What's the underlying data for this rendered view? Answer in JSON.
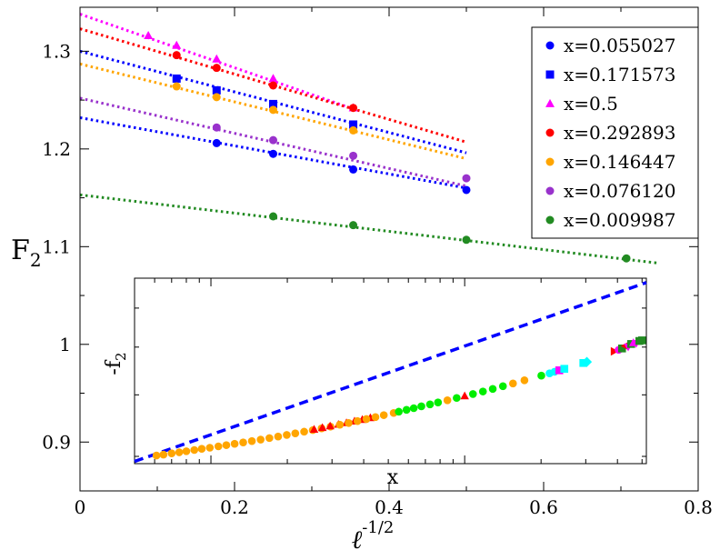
{
  "chart_data": [
    {
      "type": "scatter",
      "role": "main",
      "title": "",
      "xlabel_main": "ℓ",
      "xlabel_sup": "-1/2",
      "ylabel_main": "F",
      "ylabel_sub": "2",
      "xlim": [
        0,
        0.8
      ],
      "ylim": [
        0.85,
        1.345
      ],
      "x_ticks": [
        0,
        0.2,
        0.4,
        0.6,
        0.8
      ],
      "x_tick_labels": [
        "0",
        "0.2",
        "0.4",
        "0.6",
        "0.8"
      ],
      "y_ticks": [
        0.9,
        1.0,
        1.1,
        1.2,
        1.3
      ],
      "y_tick_labels": [
        "0.9",
        "1",
        "1.1",
        "1.2",
        "1.3"
      ],
      "legend_position": "top-right",
      "series": [
        {
          "name": "x=0.055027",
          "color": "#0000ff",
          "marker": "circle",
          "x": [
            0.1768,
            0.25,
            0.3536,
            0.5
          ],
          "y": [
            1.206,
            1.195,
            1.179,
            1.158
          ],
          "fit": {
            "x": [
              0,
              0.5
            ],
            "y": [
              1.232,
              1.16
            ]
          }
        },
        {
          "name": "x=0.171573",
          "color": "#0000ff",
          "marker": "square",
          "x": [
            0.125,
            0.1768,
            0.25,
            0.3536
          ],
          "y": [
            1.272,
            1.26,
            1.246,
            1.225
          ],
          "fit": {
            "x": [
              0,
              0.5
            ],
            "y": [
              1.3,
              1.196
            ]
          }
        },
        {
          "name": "x=0.5",
          "color": "#ff00ff",
          "marker": "triangle",
          "x": [
            0.0884,
            0.125,
            0.1768,
            0.25,
            0.3536
          ],
          "y": [
            1.316,
            1.306,
            1.292,
            1.272,
            1.242
          ],
          "fit": {
            "x": [
              0,
              0.3536
            ],
            "y": [
              1.338,
              1.241
            ]
          }
        },
        {
          "name": "x=0.292893",
          "color": "#ff0000",
          "marker": "circle",
          "x": [
            0.125,
            0.1768,
            0.25,
            0.3536
          ],
          "y": [
            1.296,
            1.283,
            1.265,
            1.242
          ],
          "fit": {
            "x": [
              0,
              0.5
            ],
            "y": [
              1.323,
              1.207
            ]
          }
        },
        {
          "name": "x=0.146447",
          "color": "#ffa500",
          "marker": "circle",
          "x": [
            0.125,
            0.1768,
            0.25,
            0.3536
          ],
          "y": [
            1.264,
            1.253,
            1.24,
            1.219
          ],
          "fit": {
            "x": [
              0,
              0.5
            ],
            "y": [
              1.287,
              1.19
            ]
          }
        },
        {
          "name": "x=0.076120",
          "color": "#9932cc",
          "marker": "circle",
          "x": [
            0.1768,
            0.25,
            0.3536,
            0.5
          ],
          "y": [
            1.222,
            1.209,
            1.193,
            1.17
          ],
          "fit": {
            "x": [
              0,
              0.5
            ],
            "y": [
              1.252,
              1.162
            ]
          }
        },
        {
          "name": "x=0.009987",
          "color": "#228b22",
          "marker": "circle",
          "x": [
            0.25,
            0.3536,
            0.5,
            0.7071
          ],
          "y": [
            1.131,
            1.122,
            1.107,
            1.088
          ],
          "fit": {
            "x": [
              0,
              0.75
            ],
            "y": [
              1.153,
              1.083
            ]
          }
        }
      ]
    },
    {
      "type": "scatter",
      "role": "inset",
      "xlabel": "x",
      "ylabel": "-f",
      "ylabel_sub": "2",
      "xscale": "log",
      "yscale": "log",
      "xlim": [
        0.005,
        0.52
      ],
      "ylim": [
        0.29,
        0.69
      ],
      "fit": {
        "color": "#0000ff",
        "x": [
          0.005,
          0.52
        ],
        "y": [
          0.293,
          0.676
        ]
      },
      "points": [
        {
          "x": 0.0061,
          "y": 0.3012,
          "color": "#ffa500",
          "marker": "circle"
        },
        {
          "x": 0.0065,
          "y": 0.3025,
          "color": "#ffa500",
          "marker": "circle"
        },
        {
          "x": 0.007,
          "y": 0.3043,
          "color": "#ffa500",
          "marker": "circle"
        },
        {
          "x": 0.0075,
          "y": 0.3058,
          "color": "#ffa500",
          "marker": "circle"
        },
        {
          "x": 0.008,
          "y": 0.3073,
          "color": "#ffa500",
          "marker": "circle"
        },
        {
          "x": 0.0086,
          "y": 0.3091,
          "color": "#ffa500",
          "marker": "circle"
        },
        {
          "x": 0.0092,
          "y": 0.3108,
          "color": "#ffa500",
          "marker": "circle"
        },
        {
          "x": 0.0099,
          "y": 0.3124,
          "color": "#ffa500",
          "marker": "circle"
        },
        {
          "x": 0.0107,
          "y": 0.3144,
          "color": "#ffa500",
          "marker": "circle"
        },
        {
          "x": 0.0115,
          "y": 0.3162,
          "color": "#ffa500",
          "marker": "circle"
        },
        {
          "x": 0.0124,
          "y": 0.3182,
          "color": "#ffa500",
          "marker": "circle"
        },
        {
          "x": 0.0134,
          "y": 0.3202,
          "color": "#ffa500",
          "marker": "circle"
        },
        {
          "x": 0.0145,
          "y": 0.3223,
          "color": "#ffa500",
          "marker": "circle"
        },
        {
          "x": 0.0157,
          "y": 0.3245,
          "color": "#ffa500",
          "marker": "circle"
        },
        {
          "x": 0.017,
          "y": 0.3268,
          "color": "#ffa500",
          "marker": "circle"
        },
        {
          "x": 0.0184,
          "y": 0.3292,
          "color": "#ffa500",
          "marker": "circle"
        },
        {
          "x": 0.0199,
          "y": 0.3316,
          "color": "#ffa500",
          "marker": "circle"
        },
        {
          "x": 0.0215,
          "y": 0.3341,
          "color": "#ffa500",
          "marker": "circle"
        },
        {
          "x": 0.0233,
          "y": 0.3367,
          "color": "#ffa500",
          "marker": "circle"
        },
        {
          "x": 0.0252,
          "y": 0.3392,
          "color": "#ffa500",
          "marker": "circle"
        },
        {
          "x": 0.0273,
          "y": 0.342,
          "color": "#ffa500",
          "marker": "circle"
        },
        {
          "x": 0.0296,
          "y": 0.3448,
          "color": "#ffa500",
          "marker": "circle"
        },
        {
          "x": 0.0255,
          "y": 0.3404,
          "color": "#ff0000",
          "marker": "triangle"
        },
        {
          "x": 0.0275,
          "y": 0.3431,
          "color": "#ff0000",
          "marker": "triangle"
        },
        {
          "x": 0.0295,
          "y": 0.3457,
          "color": "#ff0000",
          "marker": "triangle"
        },
        {
          "x": 0.0318,
          "y": 0.3483,
          "color": "#ff0000",
          "marker": "triangle"
        },
        {
          "x": 0.0342,
          "y": 0.3509,
          "color": "#ff0000",
          "marker": "triangle"
        },
        {
          "x": 0.0368,
          "y": 0.3536,
          "color": "#ff0000",
          "marker": "triangle"
        },
        {
          "x": 0.0395,
          "y": 0.3563,
          "color": "#ff0000",
          "marker": "triangle"
        },
        {
          "x": 0.0425,
          "y": 0.3593,
          "color": "#ff0000",
          "marker": "triangle"
        },
        {
          "x": 0.0322,
          "y": 0.3478,
          "color": "#ffa500",
          "marker": "circle"
        },
        {
          "x": 0.0349,
          "y": 0.3507,
          "color": "#ffa500",
          "marker": "circle"
        },
        {
          "x": 0.0378,
          "y": 0.3538,
          "color": "#ffa500",
          "marker": "circle"
        },
        {
          "x": 0.041,
          "y": 0.3572,
          "color": "#ffa500",
          "marker": "circle"
        },
        {
          "x": 0.0445,
          "y": 0.3605,
          "color": "#ffa500",
          "marker": "circle"
        },
        {
          "x": 0.048,
          "y": 0.3638,
          "color": "#ffa500",
          "marker": "circle"
        },
        {
          "x": 0.0525,
          "y": 0.3675,
          "color": "#ffa500",
          "marker": "circle"
        },
        {
          "x": 0.055,
          "y": 0.3697,
          "color": "#00ee00",
          "marker": "circle"
        },
        {
          "x": 0.059,
          "y": 0.3729,
          "color": "#00ee00",
          "marker": "circle"
        },
        {
          "x": 0.063,
          "y": 0.3758,
          "color": "#00ee00",
          "marker": "circle"
        },
        {
          "x": 0.0675,
          "y": 0.3791,
          "color": "#00ee00",
          "marker": "circle"
        },
        {
          "x": 0.073,
          "y": 0.3826,
          "color": "#00ee00",
          "marker": "circle"
        },
        {
          "x": 0.0785,
          "y": 0.386,
          "color": "#00ee00",
          "marker": "circle"
        },
        {
          "x": 0.0855,
          "y": 0.39,
          "color": "#ffa500",
          "marker": "circle"
        },
        {
          "x": 0.093,
          "y": 0.3942,
          "color": "#00ee00",
          "marker": "circle"
        },
        {
          "x": 0.1,
          "y": 0.3978,
          "color": "#ff0000",
          "marker": "triangle"
        },
        {
          "x": 0.1078,
          "y": 0.4015,
          "color": "#00ee00",
          "marker": "circle"
        },
        {
          "x": 0.118,
          "y": 0.4063,
          "color": "#00ee00",
          "marker": "circle"
        },
        {
          "x": 0.129,
          "y": 0.4112,
          "color": "#00ee00",
          "marker": "circle"
        },
        {
          "x": 0.1415,
          "y": 0.4165,
          "color": "#00ee00",
          "marker": "circle"
        },
        {
          "x": 0.155,
          "y": 0.4218,
          "color": "#ffa500",
          "marker": "circle"
        },
        {
          "x": 0.172,
          "y": 0.4281,
          "color": "#ffa500",
          "marker": "circle"
        },
        {
          "x": 0.2005,
          "y": 0.4375,
          "color": "#00ee00",
          "marker": "circle"
        },
        {
          "x": 0.216,
          "y": 0.4423,
          "color": "#00ffff",
          "marker": "circle"
        },
        {
          "x": 0.226,
          "y": 0.4455,
          "color": "#00ffff",
          "marker": "circle"
        },
        {
          "x": 0.236,
          "y": 0.4486,
          "color": "#ff00ff",
          "marker": "square"
        },
        {
          "x": 0.247,
          "y": 0.4517,
          "color": "#00ffff",
          "marker": "square"
        },
        {
          "x": 0.2935,
          "y": 0.4642,
          "color": "#00ffff",
          "marker": "square"
        },
        {
          "x": 0.303,
          "y": 0.4666,
          "color": "#00ffff",
          "marker": "diamond"
        },
        {
          "x": 0.388,
          "y": 0.4902,
          "color": "#ff0000",
          "marker": "triangle-right"
        },
        {
          "x": 0.4045,
          "y": 0.4935,
          "color": "#ff00ff",
          "marker": "circle"
        },
        {
          "x": 0.417,
          "y": 0.4968,
          "color": "#228b22",
          "marker": "square"
        },
        {
          "x": 0.4295,
          "y": 0.5025,
          "color": "#ff0000",
          "marker": "triangle-left"
        },
        {
          "x": 0.441,
          "y": 0.5005,
          "color": "#ff00ff",
          "marker": "triangle-down"
        },
        {
          "x": 0.453,
          "y": 0.5073,
          "color": "#228b22",
          "marker": "square"
        },
        {
          "x": 0.462,
          "y": 0.5102,
          "color": "#ff00ff",
          "marker": "triangle"
        },
        {
          "x": 0.474,
          "y": 0.5088,
          "color": "#ff00ff",
          "marker": "triangle-down"
        },
        {
          "x": 0.488,
          "y": 0.5145,
          "color": "#228b22",
          "marker": "square"
        },
        {
          "x": 0.5,
          "y": 0.516,
          "color": "#228b22",
          "marker": "square"
        }
      ]
    }
  ]
}
